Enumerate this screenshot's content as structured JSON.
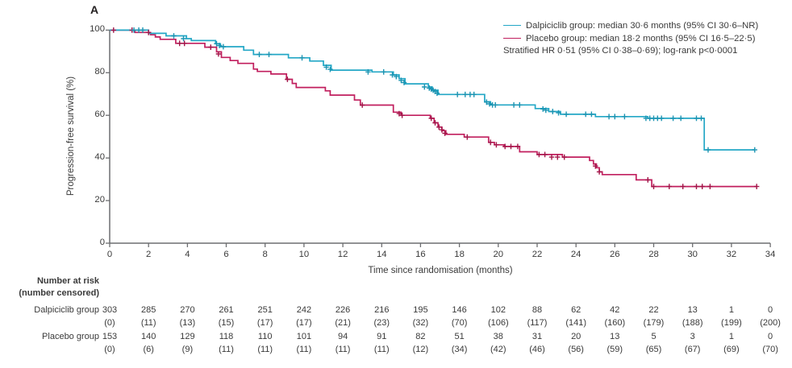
{
  "figure": {
    "panel_label": "A"
  },
  "legend": {
    "items": [
      {
        "name": "dalpiciclib",
        "text": "Dalpiciclib group: median 30·6 months (95% CI 30·6–NR)",
        "color": "#23a7c6"
      },
      {
        "name": "placebo",
        "text": "Placebo group: median 18·2 months (95% CI 16·5–22·5)",
        "color": "#c11f5e"
      }
    ],
    "note": "Stratified HR 0·51 (95% CI 0·38–0·69); log-rank p<0·0001"
  },
  "chart_data": {
    "type": "line",
    "subtype": "kaplan-meier-step-survival",
    "title": "",
    "xlabel": "Time since randomisation (months)",
    "ylabel": "Progression-free survival (%)",
    "xlim": [
      0,
      34
    ],
    "ylim": [
      0,
      100
    ],
    "x_ticks": [
      0,
      2,
      4,
      6,
      8,
      10,
      12,
      14,
      16,
      18,
      20,
      22,
      24,
      26,
      28,
      30,
      32,
      34
    ],
    "y_ticks": [
      0,
      20,
      40,
      60,
      80,
      100
    ],
    "grid": false,
    "legend_position": "top-right",
    "series": [
      {
        "name": "Placebo group",
        "color": "#c11f5e",
        "censor_color": "#a31549",
        "median_text": "18·2 months (95% CI 16·5–22·5)",
        "steps": [
          [
            0,
            100
          ],
          [
            1.3,
            98.9
          ],
          [
            2.1,
            97.8
          ],
          [
            2.35,
            96.8
          ],
          [
            2.6,
            95.7
          ],
          [
            3.4,
            93.8
          ],
          [
            4.9,
            92.0
          ],
          [
            5.5,
            89.8
          ],
          [
            5.75,
            87.2
          ],
          [
            6.2,
            85.7
          ],
          [
            6.6,
            84.4
          ],
          [
            7.4,
            81.7
          ],
          [
            7.6,
            80.6
          ],
          [
            8.3,
            79.4
          ],
          [
            9.1,
            76.9
          ],
          [
            9.4,
            75.0
          ],
          [
            9.6,
            73.1
          ],
          [
            11.1,
            71.5
          ],
          [
            11.35,
            69.5
          ],
          [
            12.6,
            67.2
          ],
          [
            12.9,
            64.8
          ],
          [
            14.6,
            61.5
          ],
          [
            15.0,
            60.0
          ],
          [
            16.5,
            58.6
          ],
          [
            16.7,
            56.5
          ],
          [
            16.9,
            54.5
          ],
          [
            17.1,
            52.8
          ],
          [
            17.3,
            51.1
          ],
          [
            18.25,
            49.8
          ],
          [
            19.5,
            47.3
          ],
          [
            19.8,
            46.2
          ],
          [
            20.3,
            45.4
          ],
          [
            21.1,
            42.9
          ],
          [
            22.0,
            41.6
          ],
          [
            23.3,
            40.4
          ],
          [
            24.7,
            38.8
          ],
          [
            24.9,
            37.2
          ],
          [
            25.05,
            35.4
          ],
          [
            25.2,
            33.5
          ],
          [
            25.35,
            32.2
          ],
          [
            27.1,
            29.7
          ],
          [
            27.9,
            26.6
          ],
          [
            33.3,
            26.6
          ]
        ],
        "censor_marks": [
          [
            0.2,
            100
          ],
          [
            1.15,
            100
          ],
          [
            2.0,
            98.9
          ],
          [
            3.6,
            93.8
          ],
          [
            3.85,
            93.8
          ],
          [
            5.2,
            92.0
          ],
          [
            5.6,
            88.8
          ],
          [
            9.15,
            76.9
          ],
          [
            13.0,
            64.8
          ],
          [
            14.9,
            60.8
          ],
          [
            15.05,
            60.0
          ],
          [
            16.55,
            58.6
          ],
          [
            16.75,
            56.5
          ],
          [
            16.95,
            54.5
          ],
          [
            17.1,
            53.2
          ],
          [
            17.25,
            51.6
          ],
          [
            18.4,
            49.8
          ],
          [
            19.6,
            47.3
          ],
          [
            19.9,
            46.2
          ],
          [
            20.35,
            45.4
          ],
          [
            20.65,
            45.4
          ],
          [
            21.0,
            45.4
          ],
          [
            22.1,
            41.6
          ],
          [
            22.4,
            41.6
          ],
          [
            22.75,
            40.4
          ],
          [
            23.05,
            40.4
          ],
          [
            23.4,
            40.4
          ],
          [
            25.0,
            36.2
          ],
          [
            25.2,
            33.5
          ],
          [
            27.7,
            29.7
          ],
          [
            28.0,
            26.6
          ],
          [
            28.8,
            26.6
          ],
          [
            29.5,
            26.6
          ],
          [
            30.2,
            26.6
          ],
          [
            30.5,
            26.6
          ],
          [
            30.9,
            26.6
          ],
          [
            33.3,
            26.6
          ]
        ]
      },
      {
        "name": "Dalpiciclib group",
        "color": "#23a7c6",
        "censor_color": "#1b94b2",
        "median_text": "30·6 months (95% CI 30·6–NR)",
        "steps": [
          [
            0,
            100
          ],
          [
            2.0,
            98.5
          ],
          [
            2.9,
            97.3
          ],
          [
            3.95,
            96.0
          ],
          [
            4.2,
            95.1
          ],
          [
            5.45,
            93.6
          ],
          [
            5.7,
            92.2
          ],
          [
            6.9,
            90.6
          ],
          [
            7.4,
            88.6
          ],
          [
            9.2,
            87.0
          ],
          [
            10.3,
            85.5
          ],
          [
            11.0,
            83.5
          ],
          [
            11.4,
            81.2
          ],
          [
            13.5,
            80.4
          ],
          [
            14.6,
            79.0
          ],
          [
            14.9,
            77.2
          ],
          [
            15.2,
            74.8
          ],
          [
            16.4,
            73.3
          ],
          [
            16.6,
            71.8
          ],
          [
            16.9,
            69.8
          ],
          [
            19.3,
            66.4
          ],
          [
            19.6,
            64.9
          ],
          [
            21.9,
            63.2
          ],
          [
            22.6,
            61.8
          ],
          [
            23.2,
            60.5
          ],
          [
            25.0,
            59.4
          ],
          [
            27.7,
            58.6
          ],
          [
            30.6,
            43.8
          ],
          [
            33.2,
            43.8
          ]
        ],
        "censor_marks": [
          [
            1.25,
            100
          ],
          [
            1.5,
            100
          ],
          [
            1.7,
            100
          ],
          [
            3.3,
            97.3
          ],
          [
            3.8,
            96.0
          ],
          [
            5.5,
            93.6
          ],
          [
            5.65,
            92.8
          ],
          [
            5.85,
            92.2
          ],
          [
            7.7,
            88.6
          ],
          [
            8.2,
            88.6
          ],
          [
            9.9,
            87.0
          ],
          [
            11.15,
            82.6
          ],
          [
            11.35,
            81.6
          ],
          [
            13.3,
            80.4
          ],
          [
            14.1,
            80.4
          ],
          [
            14.55,
            79.0
          ],
          [
            14.75,
            78.2
          ],
          [
            15.0,
            76.4
          ],
          [
            15.15,
            75.4
          ],
          [
            16.2,
            73.3
          ],
          [
            16.45,
            72.8
          ],
          [
            16.55,
            72.3
          ],
          [
            16.65,
            71.8
          ],
          [
            16.75,
            71.2
          ],
          [
            16.85,
            70.4
          ],
          [
            17.9,
            69.8
          ],
          [
            18.3,
            69.8
          ],
          [
            18.55,
            69.8
          ],
          [
            18.75,
            69.8
          ],
          [
            19.4,
            66.2
          ],
          [
            19.55,
            65.4
          ],
          [
            19.7,
            64.9
          ],
          [
            19.85,
            64.9
          ],
          [
            20.8,
            64.9
          ],
          [
            21.1,
            64.9
          ],
          [
            22.3,
            63.0
          ],
          [
            22.45,
            62.4
          ],
          [
            22.8,
            61.8
          ],
          [
            23.1,
            61.2
          ],
          [
            23.5,
            60.5
          ],
          [
            24.5,
            60.5
          ],
          [
            24.8,
            60.5
          ],
          [
            25.7,
            59.4
          ],
          [
            26.0,
            59.4
          ],
          [
            26.5,
            59.4
          ],
          [
            27.6,
            58.6
          ],
          [
            27.8,
            58.6
          ],
          [
            28.0,
            58.6
          ],
          [
            28.2,
            58.6
          ],
          [
            28.4,
            58.6
          ],
          [
            29.0,
            58.6
          ],
          [
            29.4,
            58.6
          ],
          [
            30.2,
            58.6
          ],
          [
            30.45,
            58.6
          ],
          [
            30.8,
            43.8
          ],
          [
            33.2,
            43.8
          ]
        ]
      }
    ]
  },
  "risk_table": {
    "title": "Number at risk",
    "subtitle": "(number censored)",
    "timepoints": [
      0,
      2,
      4,
      6,
      8,
      10,
      12,
      14,
      16,
      18,
      20,
      22,
      24,
      26,
      28,
      30,
      32,
      34
    ],
    "rows": [
      {
        "label": "Dalpiciclib group",
        "at_risk": [
          "303",
          "285",
          "270",
          "261",
          "251",
          "242",
          "226",
          "216",
          "195",
          "146",
          "102",
          "88",
          "62",
          "42",
          "22",
          "13",
          "1",
          "0"
        ],
        "censored": [
          "(0)",
          "(11)",
          "(13)",
          "(15)",
          "(17)",
          "(17)",
          "(21)",
          "(23)",
          "(32)",
          "(70)",
          "(106)",
          "(117)",
          "(141)",
          "(160)",
          "(179)",
          "(188)",
          "(199)",
          "(200)"
        ]
      },
      {
        "label": "Placebo group",
        "at_risk": [
          "153",
          "140",
          "129",
          "118",
          "110",
          "101",
          "94",
          "91",
          "82",
          "51",
          "38",
          "31",
          "20",
          "13",
          "5",
          "3",
          "1",
          "0"
        ],
        "censored": [
          "(0)",
          "(6)",
          "(9)",
          "(11)",
          "(11)",
          "(11)",
          "(11)",
          "(11)",
          "(12)",
          "(34)",
          "(42)",
          "(46)",
          "(56)",
          "(59)",
          "(65)",
          "(67)",
          "(69)",
          "(70)"
        ]
      }
    ]
  },
  "style_colors": {
    "axis": "#6d6e71",
    "text": "#3a3a3a"
  }
}
